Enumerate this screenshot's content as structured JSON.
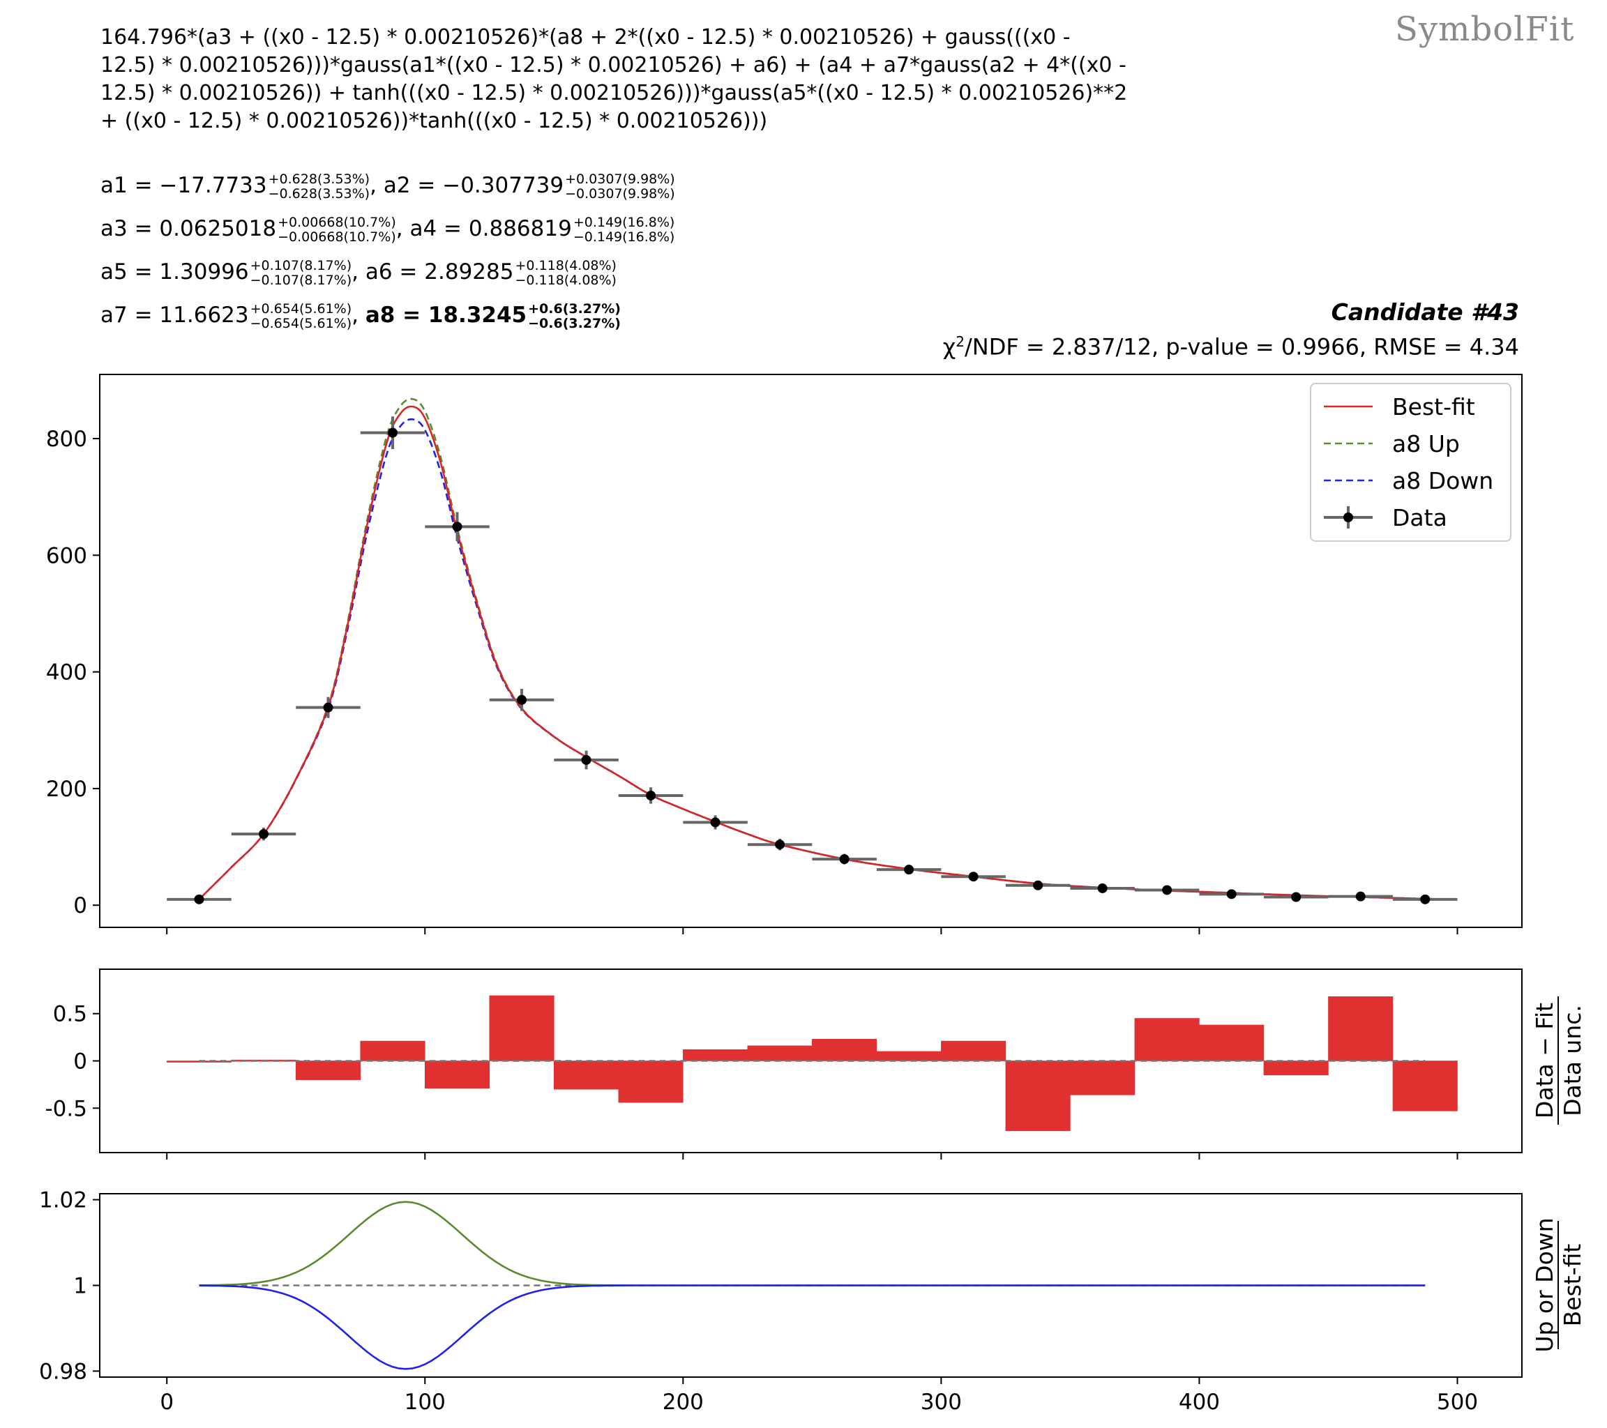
{
  "watermark": "SymbolFit",
  "formula": "164.796*(a3 + ((x0 - 12.5) * 0.00210526)*(a8 + 2*((x0 - 12.5) * 0.00210526) + gauss(((x0 -\n12.5) * 0.00210526)))*gauss(a1*((x0 - 12.5) * 0.00210526) + a6) + (a4 + a7*gauss(a2 + 4*((x0 -\n12.5) * 0.00210526)) + tanh(((x0 - 12.5) * 0.00210526)))*gauss(a5*((x0 - 12.5) * 0.00210526)**2\n+ ((x0 - 12.5) * 0.00210526))*tanh(((x0 - 12.5) * 0.00210526)))",
  "params": [
    {
      "name": "a1",
      "value": "−17.7733",
      "up": "+0.628(3.53%)",
      "down": "−0.628(3.53%)"
    },
    {
      "name": "a2",
      "value": "−0.307739",
      "up": "+0.0307(9.98%)",
      "down": "−0.0307(9.98%)"
    },
    {
      "name": "a3",
      "value": "0.0625018",
      "up": "+0.00668(10.7%)",
      "down": "−0.00668(10.7%)"
    },
    {
      "name": "a4",
      "value": "0.886819",
      "up": "+0.149(16.8%)",
      "down": "−0.149(16.8%)"
    },
    {
      "name": "a5",
      "value": "1.30996",
      "up": "+0.107(8.17%)",
      "down": "−0.107(8.17%)"
    },
    {
      "name": "a6",
      "value": "2.89285",
      "up": "+0.118(4.08%)",
      "down": "−0.118(4.08%)"
    },
    {
      "name": "a7",
      "value": "11.6623",
      "up": "+0.654(5.61%)",
      "down": "−0.654(5.61%)"
    },
    {
      "name": "a8",
      "value": "18.3245",
      "up": "+0.6(3.27%)",
      "down": "−0.6(3.27%)",
      "bold": true
    }
  ],
  "candidate": "Candidate #43",
  "stats": {
    "chi_prefix": "χ",
    "chi_sup": "2",
    "rest": "/NDF = 2.837/12, p-value = 0.9966, RMSE = 4.34"
  },
  "legend": [
    "Best-fit",
    "a8 Up",
    "a8 Down",
    "Data"
  ],
  "ylabels": {
    "residual_num": "Data − Fit",
    "residual_den": "Data unc.",
    "ratio_num": "Up or Down",
    "ratio_den": "Best-fit"
  },
  "colors": {
    "bestfit": "#d62728",
    "up": "#5a8a2e",
    "down": "#2020ee",
    "data": "#000000",
    "xerr": "#666666",
    "bar": "#e03030"
  },
  "chart_data": [
    {
      "type": "scatter",
      "xlim": [
        -26,
        525
      ],
      "ylim": [
        -38,
        910
      ],
      "yticks": [
        0,
        200,
        400,
        600,
        800
      ],
      "xticks": [
        0,
        100,
        200,
        300,
        400,
        500
      ],
      "bin_half_width": 12.5,
      "data": {
        "x": [
          12.5,
          37.5,
          62.5,
          87.5,
          112.5,
          137.5,
          162.5,
          187.5,
          212.5,
          237.5,
          262.5,
          287.5,
          312.5,
          337.5,
          362.5,
          387.5,
          412.5,
          437.5,
          462.5,
          487.5
        ],
        "y": [
          10,
          122,
          339,
          810,
          649,
          352,
          249,
          188,
          142,
          104,
          79,
          61,
          49,
          34,
          29,
          26,
          19,
          14,
          15,
          10
        ],
        "yerr": [
          3,
          11,
          18,
          28,
          25,
          19,
          16,
          14,
          12,
          10,
          9,
          8,
          7,
          6,
          5,
          5,
          4,
          4,
          4,
          3
        ]
      },
      "bestfit": {
        "x": [
          12.5,
          25,
          37.5,
          50,
          62.5,
          70,
          77.5,
          85,
          90,
          95,
          100,
          106,
          112.5,
          120,
          128,
          137.5,
          150,
          162.5,
          175,
          187.5,
          200,
          212.5,
          225,
          237.5,
          262.5,
          287.5,
          312.5,
          337.5,
          362.5,
          387.5,
          412.5,
          437.5,
          462.5,
          487.5,
          500
        ],
        "y": [
          10,
          65,
          122,
          216,
          340,
          480,
          650,
          790,
          840,
          855,
          835,
          760,
          640,
          520,
          410,
          337,
          289,
          254,
          222,
          189,
          165,
          143,
          122,
          104,
          79,
          62,
          49,
          37,
          30,
          25,
          21,
          17,
          14,
          11,
          10
        ]
      },
      "up_peak": 868,
      "down_peak": 833
    },
    {
      "type": "bar",
      "xlim": [
        -26,
        525
      ],
      "ylim": [
        -0.97,
        0.97
      ],
      "yticks": [
        0.5,
        0,
        -0.5
      ],
      "ytick_labels": [
        "0.5",
        "0",
        "-0.5"
      ],
      "bin_edges": [
        0,
        25,
        50,
        75,
        100,
        125,
        150,
        175,
        200,
        225,
        250,
        275,
        300,
        325,
        350,
        375,
        400,
        425,
        450,
        475,
        500
      ],
      "values": [
        -0.01,
        0.01,
        -0.2,
        0.21,
        -0.29,
        0.69,
        -0.3,
        -0.44,
        0.12,
        0.16,
        0.23,
        0.1,
        0.21,
        -0.74,
        -0.36,
        0.45,
        0.38,
        -0.15,
        0.68,
        -0.53
      ]
    },
    {
      "type": "line",
      "xlim": [
        -26,
        525
      ],
      "ylim": [
        0.9786,
        1.0214
      ],
      "yticks": [
        1.02,
        1.0,
        0.98
      ],
      "ytick_labels": [
        "1.02",
        "1",
        "0.98"
      ],
      "x_range": [
        12.5,
        487.5
      ],
      "up": {
        "peak_x": 92.5,
        "amplitude": 0.0195,
        "sigma": 22
      },
      "down": {
        "peak_x": 92.5,
        "amplitude": -0.0195,
        "sigma": 22
      }
    }
  ]
}
